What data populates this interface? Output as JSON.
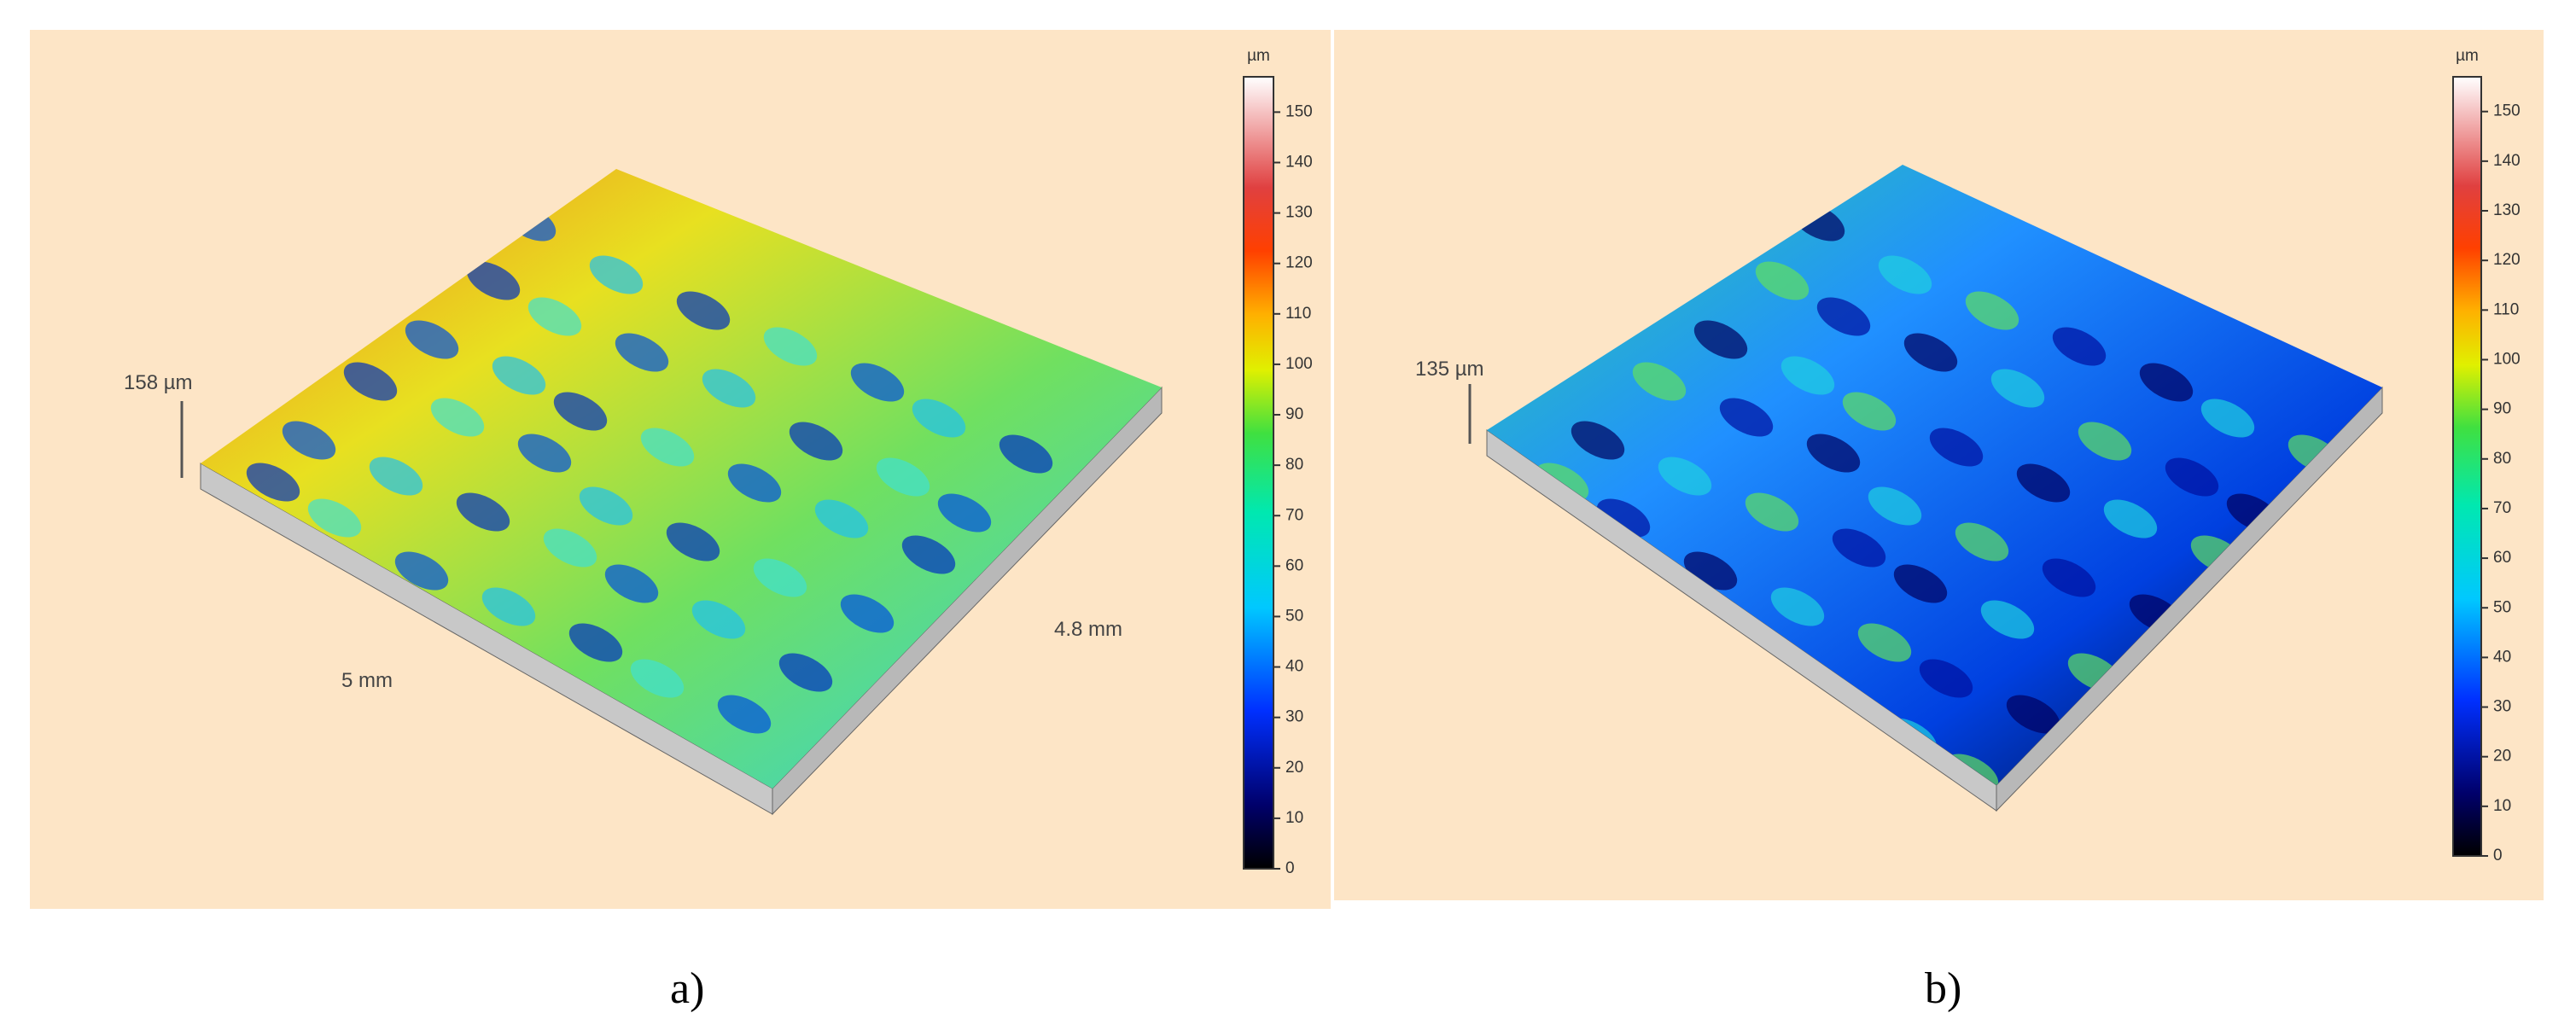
{
  "panels": [
    {
      "height_label": "158 µm",
      "length_label": "5 mm",
      "width_label": "4.8 mm",
      "caption": "a)",
      "colorbar": {
        "unit": "µm",
        "lim": [
          0,
          157
        ],
        "ticks": [
          0,
          10,
          20,
          30,
          40,
          50,
          60,
          70,
          80,
          90,
          100,
          110,
          120,
          130,
          140,
          150
        ]
      }
    },
    {
      "height_label": "135 µm",
      "caption": "b)",
      "colorbar": {
        "unit": "µm",
        "lim": [
          0,
          157
        ],
        "ticks": [
          0,
          10,
          20,
          30,
          40,
          50,
          60,
          70,
          80,
          90,
          100,
          110,
          120,
          130,
          140,
          150
        ]
      }
    }
  ]
}
